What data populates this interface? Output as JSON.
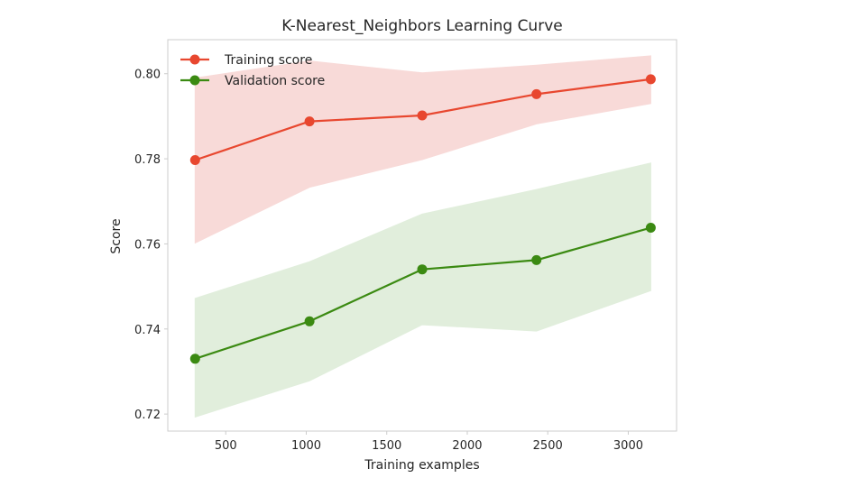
{
  "chart_data": {
    "type": "line",
    "title": "K-Nearest_Neighbors Learning Curve",
    "xlabel": "Training examples",
    "ylabel": "Score",
    "xlim": [
      140,
      3300
    ],
    "ylim": [
      0.716,
      0.808
    ],
    "xticks": [
      500,
      1000,
      1500,
      2000,
      2500,
      3000
    ],
    "yticks": [
      0.72,
      0.74,
      0.76,
      0.78,
      0.8
    ],
    "x": [
      310,
      1020,
      1720,
      2430,
      3140
    ],
    "grid": false,
    "legend": "top-left",
    "series": [
      {
        "name": "Training score",
        "color": "#e8472f",
        "values": [
          0.7797,
          0.7888,
          0.7902,
          0.7952,
          0.7987
        ],
        "band_upper": [
          0.799,
          0.803,
          0.8002,
          0.802,
          0.8042
        ],
        "band_lower": [
          0.7602,
          0.7733,
          0.7798,
          0.7882,
          0.793
        ],
        "band_color": "#f7d4d2"
      },
      {
        "name": "Validation score",
        "color": "#3b8a12",
        "values": [
          0.733,
          0.7418,
          0.754,
          0.7562,
          0.7638
        ],
        "band_upper": [
          0.7472,
          0.7558,
          0.767,
          0.7728,
          0.779
        ],
        "band_lower": [
          0.7193,
          0.7278,
          0.741,
          0.7395,
          0.749
        ],
        "band_color": "#dcecd7"
      }
    ]
  }
}
